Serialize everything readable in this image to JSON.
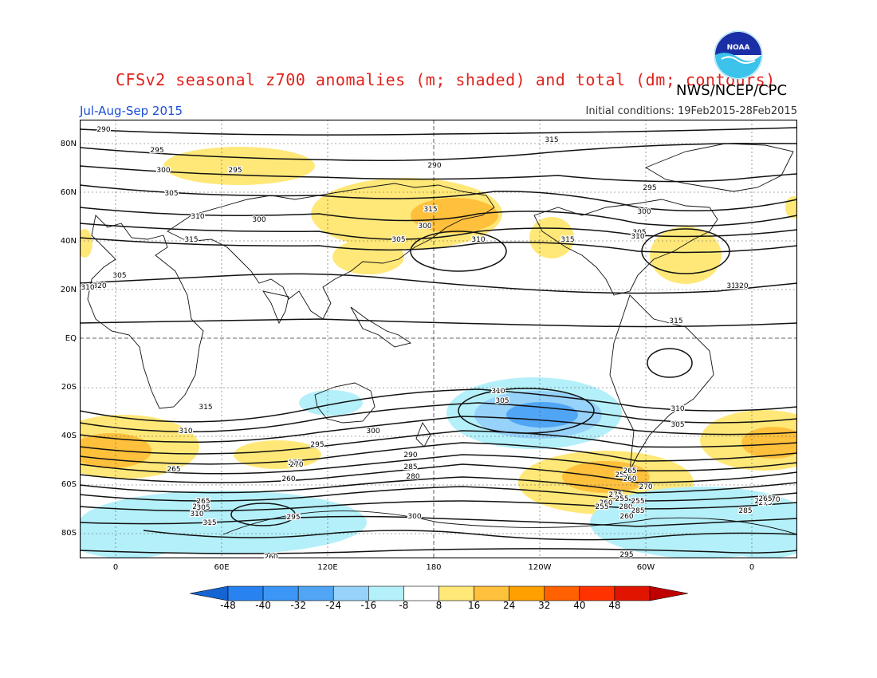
{
  "header": {
    "title": "CFSv2 seasonal z700 anomalies (m; shaded) and total (dm; contours)",
    "agency": "NWS/NCEP/CPC",
    "season": "Jul-Aug-Sep 2015",
    "initial_conditions": "Initial conditions: 19Feb2015-28Feb2015",
    "logo_text": "NOAA"
  },
  "axes": {
    "lat_labels": [
      "80N",
      "60N",
      "40N",
      "20N",
      "EQ",
      "20S",
      "40S",
      "60S",
      "80S"
    ],
    "lon_labels": [
      "0",
      "60E",
      "120E",
      "180",
      "120W",
      "60W",
      "0"
    ]
  },
  "colorbar": {
    "ticks": [
      "-48",
      "-40",
      "-32",
      "-24",
      "-16",
      "-8",
      "8",
      "16",
      "24",
      "32",
      "40",
      "48"
    ],
    "colors": [
      "#1464d2",
      "#2882f0",
      "#3c96f5",
      "#50a5f5",
      "#96d2fa",
      "#b4f0fa",
      "#ffffff",
      "#ffe878",
      "#ffc03c",
      "#ffa000",
      "#ff6000",
      "#ff3200",
      "#e11400",
      "#c00000"
    ]
  },
  "contour_labels": [
    "290",
    "295",
    "300",
    "305",
    "310",
    "315",
    "320",
    "315",
    "290",
    "295",
    "300",
    "305",
    "310",
    "315",
    "300",
    "305",
    "310",
    "315",
    "295",
    "300",
    "305",
    "310",
    "315",
    "320",
    "315",
    "315",
    "310",
    "305",
    "310",
    "305",
    "310",
    "300",
    "295",
    "290",
    "285",
    "280",
    "275",
    "270",
    "265",
    "260",
    "255",
    "260",
    "265",
    "270",
    "275",
    "280",
    "285",
    "290",
    "295",
    "300",
    "305",
    "310",
    "315",
    "295",
    "290",
    "285",
    "280",
    "275",
    "270",
    "265",
    "260",
    "255",
    "255",
    "255",
    "260",
    "265",
    "260"
  ]
}
